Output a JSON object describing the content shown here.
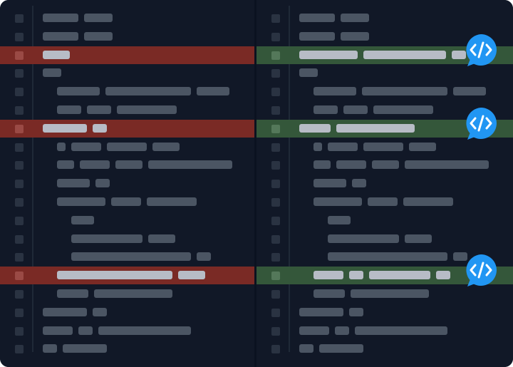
{
  "colors": {
    "background": "#111827",
    "removed_line": "#7a2a25",
    "added_line": "#34573a",
    "placeholder_text": "#4b5563",
    "highlighted_text": "#b7bcc6",
    "comment_badge": "#2196f3"
  },
  "left_pane": {
    "rows": [
      {
        "indent": 0,
        "widths": [
          50,
          40
        ]
      },
      {
        "indent": 0,
        "widths": [
          50,
          40
        ]
      },
      {
        "indent": 0,
        "widths": [
          38
        ],
        "change": "removed"
      },
      {
        "indent": 0,
        "widths": [
          26
        ]
      },
      {
        "indent": 1,
        "widths": [
          60,
          120,
          46
        ]
      },
      {
        "indent": 1,
        "widths": [
          34,
          34,
          84
        ]
      },
      {
        "indent": 0,
        "widths": [
          62,
          20
        ],
        "change": "removed"
      },
      {
        "indent": 1,
        "widths": [
          12,
          42,
          56,
          38
        ]
      },
      {
        "indent": 1,
        "widths": [
          24,
          42,
          38,
          118
        ]
      },
      {
        "indent": 1,
        "widths": [
          46,
          20
        ]
      },
      {
        "indent": 1,
        "widths": [
          68,
          42,
          70
        ]
      },
      {
        "indent": 2,
        "widths": [
          32
        ]
      },
      {
        "indent": 2,
        "widths": [
          100,
          38
        ]
      },
      {
        "indent": 2,
        "widths": [
          168,
          20
        ]
      },
      {
        "indent": 1,
        "widths": [
          162,
          38
        ],
        "change": "removed"
      },
      {
        "indent": 1,
        "widths": [
          44,
          110
        ]
      },
      {
        "indent": 0,
        "widths": [
          62,
          20
        ]
      },
      {
        "indent": 0,
        "widths": [
          42,
          20,
          130
        ]
      },
      {
        "indent": 0,
        "widths": [
          20,
          62
        ]
      }
    ]
  },
  "right_pane": {
    "rows": [
      {
        "indent": 0,
        "widths": [
          50,
          40
        ]
      },
      {
        "indent": 0,
        "widths": [
          50,
          40
        ]
      },
      {
        "indent": 0,
        "widths": [
          82,
          116,
          20
        ],
        "change": "added",
        "comment": true
      },
      {
        "indent": 0,
        "widths": [
          26
        ]
      },
      {
        "indent": 1,
        "widths": [
          60,
          120,
          46
        ]
      },
      {
        "indent": 1,
        "widths": [
          34,
          34,
          84
        ]
      },
      {
        "indent": 0,
        "widths": [
          44,
          110
        ],
        "change": "added",
        "comment": true
      },
      {
        "indent": 1,
        "widths": [
          12,
          42,
          56,
          38
        ]
      },
      {
        "indent": 1,
        "widths": [
          24,
          42,
          38,
          118
        ]
      },
      {
        "indent": 1,
        "widths": [
          46,
          20
        ]
      },
      {
        "indent": 1,
        "widths": [
          68,
          42,
          70
        ]
      },
      {
        "indent": 2,
        "widths": [
          32
        ]
      },
      {
        "indent": 2,
        "widths": [
          100,
          38
        ]
      },
      {
        "indent": 2,
        "widths": [
          168,
          20
        ]
      },
      {
        "indent": 1,
        "widths": [
          42,
          20,
          86,
          20
        ],
        "change": "added",
        "comment": true
      },
      {
        "indent": 1,
        "widths": [
          44,
          110
        ]
      },
      {
        "indent": 0,
        "widths": [
          62,
          20
        ]
      },
      {
        "indent": 0,
        "widths": [
          42,
          20,
          130
        ]
      },
      {
        "indent": 0,
        "widths": [
          20,
          62
        ]
      }
    ]
  },
  "icons": {
    "comment_badge": "code-brackets-speech-bubble-icon"
  }
}
